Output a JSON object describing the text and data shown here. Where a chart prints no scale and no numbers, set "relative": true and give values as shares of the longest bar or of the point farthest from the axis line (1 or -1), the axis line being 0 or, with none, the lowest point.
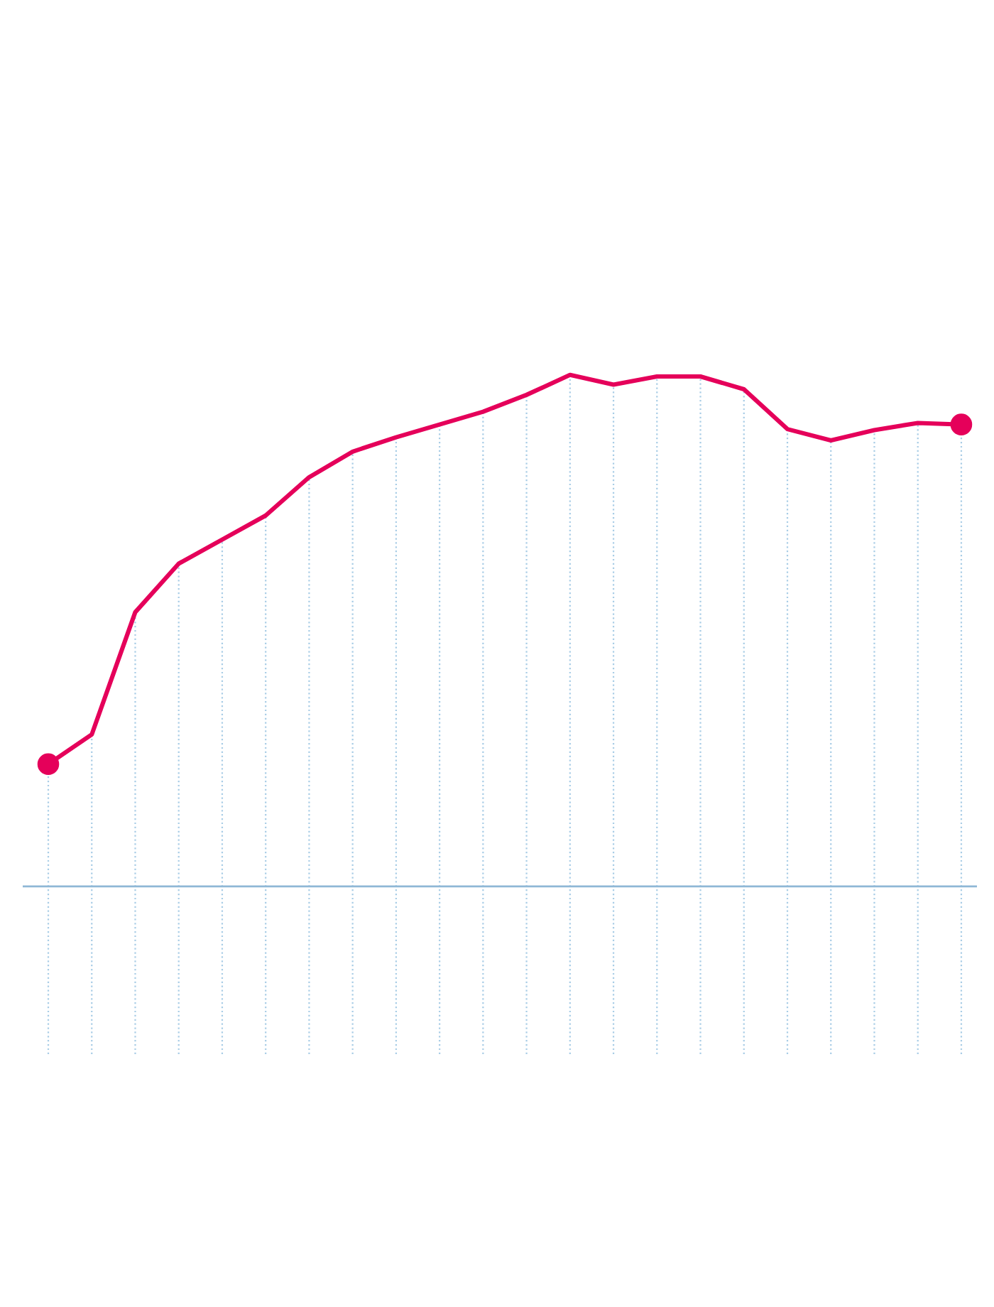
{
  "chart_data": {
    "type": "line",
    "relative": true,
    "categories": [
      null,
      null,
      null,
      null,
      null,
      null,
      null,
      null,
      null,
      null,
      null,
      null,
      null,
      null,
      null,
      null,
      null,
      null,
      null,
      null,
      null,
      null
    ],
    "series": [
      {
        "color": "#e5005a",
        "values": [
          0.239,
          0.297,
          0.536,
          0.631,
          0.678,
          0.725,
          0.8,
          0.85,
          0.878,
          0.903,
          0.928,
          0.961,
          1,
          0.981,
          0.997,
          0.997,
          0.972,
          0.894,
          0.872,
          0.892,
          0.906,
          0.903
        ]
      }
    ],
    "grid": "x",
    "marker": "none",
    "line_style": "solid",
    "legend": false
  }
}
